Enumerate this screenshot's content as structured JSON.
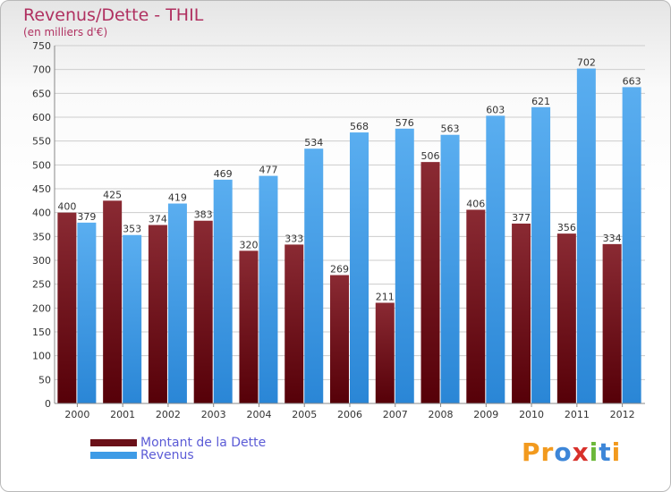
{
  "chart_data": {
    "type": "bar",
    "title": "Revenus/Dette - THIL",
    "subtitle": "(en milliers d'€)",
    "categories": [
      "2000",
      "2001",
      "2002",
      "2003",
      "2004",
      "2005",
      "2006",
      "2007",
      "2008",
      "2009",
      "2010",
      "2011",
      "2012"
    ],
    "series": [
      {
        "name": "Montant de la Dette",
        "color": "#6b1018",
        "values": [
          400,
          425,
          374,
          383,
          320,
          333,
          269,
          211,
          506,
          406,
          377,
          356,
          334
        ]
      },
      {
        "name": "Revenus",
        "color": "#3e9be6",
        "values": [
          379,
          353,
          419,
          469,
          477,
          534,
          568,
          576,
          563,
          603,
          621,
          702,
          663
        ]
      }
    ],
    "ylim": [
      0,
      750
    ],
    "ytick_step": 50,
    "grid": true,
    "legend_placement": "bottom-left"
  },
  "logo": {
    "text": "Proxiti",
    "letters": [
      {
        "ch": "P",
        "color": "#f29a1e"
      },
      {
        "ch": "r",
        "color": "#f29a1e"
      },
      {
        "ch": "o",
        "color": "#3d86d8"
      },
      {
        "ch": "x",
        "color": "#d8312b"
      },
      {
        "ch": "i",
        "color": "#6cb83a"
      },
      {
        "ch": "t",
        "color": "#3d86d8"
      },
      {
        "ch": "i",
        "color": "#f29a1e"
      }
    ]
  }
}
